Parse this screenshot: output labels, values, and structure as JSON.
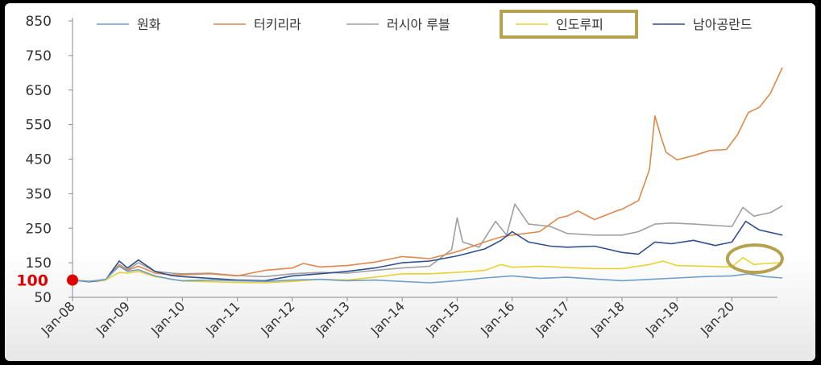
{
  "chart_data": {
    "type": "line",
    "title": "",
    "xlabel": "",
    "ylabel": "",
    "ylim": [
      50,
      850
    ],
    "yticks": [
      850,
      750,
      650,
      550,
      450,
      350,
      250,
      150,
      50
    ],
    "xlim": [
      2008.0,
      2020.92
    ],
    "xticks": [
      {
        "label": "Jan-08",
        "x": 2008
      },
      {
        "label": "Jan-09",
        "x": 2009
      },
      {
        "label": "Jan-10",
        "x": 2010
      },
      {
        "label": "Jan-11",
        "x": 2011
      },
      {
        "label": "Jan-12",
        "x": 2012
      },
      {
        "label": "Jan-13",
        "x": 2013
      },
      {
        "label": "Jan-14",
        "x": 2014
      },
      {
        "label": "Jan-15",
        "x": 2015
      },
      {
        "label": "Jan-16",
        "x": 2016
      },
      {
        "label": "Jan-17",
        "x": 2017
      },
      {
        "label": "Jan-18",
        "x": 2018
      },
      {
        "label": "Jan-19",
        "x": 2019
      },
      {
        "label": "Jan-20",
        "x": 2020
      }
    ],
    "baseline_marker": {
      "label": "100",
      "x": 2008,
      "y": 100,
      "color": "#e00000"
    },
    "legend": {
      "placement": "top",
      "highlighted": "인도루피",
      "highlight_color": "#b5a14e"
    },
    "annotation": {
      "type": "ellipse",
      "x": 2020.3,
      "y": 150,
      "color": "#b5a14e"
    },
    "series": [
      {
        "name": "원화",
        "color": "#6f9fca",
        "points": [
          [
            2008.0,
            100
          ],
          [
            2008.3,
            96
          ],
          [
            2008.6,
            102
          ],
          [
            2008.85,
            140
          ],
          [
            2009.0,
            125
          ],
          [
            2009.2,
            130
          ],
          [
            2009.5,
            112
          ],
          [
            2009.8,
            102
          ],
          [
            2010.0,
            98
          ],
          [
            2010.5,
            100
          ],
          [
            2011.0,
            98
          ],
          [
            2011.5,
            96
          ],
          [
            2012.0,
            100
          ],
          [
            2012.5,
            102
          ],
          [
            2013.0,
            98
          ],
          [
            2013.5,
            100
          ],
          [
            2014.0,
            96
          ],
          [
            2014.5,
            92
          ],
          [
            2015.0,
            98
          ],
          [
            2015.5,
            106
          ],
          [
            2016.0,
            112
          ],
          [
            2016.5,
            105
          ],
          [
            2017.0,
            108
          ],
          [
            2017.5,
            103
          ],
          [
            2018.0,
            98
          ],
          [
            2018.5,
            102
          ],
          [
            2019.0,
            106
          ],
          [
            2019.5,
            110
          ],
          [
            2020.0,
            112
          ],
          [
            2020.3,
            118
          ],
          [
            2020.6,
            110
          ],
          [
            2020.92,
            106
          ]
        ]
      },
      {
        "name": "터키리라",
        "color": "#e0894b",
        "points": [
          [
            2008.0,
            100
          ],
          [
            2008.3,
            95
          ],
          [
            2008.6,
            100
          ],
          [
            2008.85,
            145
          ],
          [
            2009.0,
            128
          ],
          [
            2009.2,
            140
          ],
          [
            2009.5,
            120
          ],
          [
            2009.8,
            115
          ],
          [
            2010.0,
            115
          ],
          [
            2010.5,
            118
          ],
          [
            2011.0,
            112
          ],
          [
            2011.5,
            128
          ],
          [
            2012.0,
            135
          ],
          [
            2012.2,
            148
          ],
          [
            2012.5,
            138
          ],
          [
            2013.0,
            142
          ],
          [
            2013.5,
            152
          ],
          [
            2014.0,
            168
          ],
          [
            2014.5,
            162
          ],
          [
            2015.0,
            182
          ],
          [
            2015.5,
            210
          ],
          [
            2015.8,
            225
          ],
          [
            2016.0,
            230
          ],
          [
            2016.5,
            240
          ],
          [
            2016.85,
            280
          ],
          [
            2017.0,
            285
          ],
          [
            2017.2,
            300
          ],
          [
            2017.5,
            275
          ],
          [
            2017.9,
            300
          ],
          [
            2018.0,
            305
          ],
          [
            2018.3,
            330
          ],
          [
            2018.5,
            420
          ],
          [
            2018.6,
            575
          ],
          [
            2018.7,
            520
          ],
          [
            2018.8,
            470
          ],
          [
            2019.0,
            448
          ],
          [
            2019.3,
            460
          ],
          [
            2019.6,
            475
          ],
          [
            2019.9,
            478
          ],
          [
            2020.1,
            520
          ],
          [
            2020.3,
            585
          ],
          [
            2020.5,
            600
          ],
          [
            2020.7,
            640
          ],
          [
            2020.92,
            715
          ]
        ]
      },
      {
        "name": "러시아 루블",
        "color": "#a0a0a0",
        "points": [
          [
            2008.0,
            100
          ],
          [
            2008.3,
            96
          ],
          [
            2008.6,
            100
          ],
          [
            2008.85,
            145
          ],
          [
            2009.0,
            130
          ],
          [
            2009.2,
            150
          ],
          [
            2009.5,
            125
          ],
          [
            2009.8,
            120
          ],
          [
            2010.0,
            118
          ],
          [
            2010.5,
            120
          ],
          [
            2011.0,
            113
          ],
          [
            2011.5,
            110
          ],
          [
            2012.0,
            118
          ],
          [
            2012.5,
            122
          ],
          [
            2013.0,
            120
          ],
          [
            2013.5,
            128
          ],
          [
            2014.0,
            135
          ],
          [
            2014.5,
            140
          ],
          [
            2014.9,
            188
          ],
          [
            2015.0,
            280
          ],
          [
            2015.1,
            210
          ],
          [
            2015.4,
            195
          ],
          [
            2015.7,
            270
          ],
          [
            2015.9,
            230
          ],
          [
            2016.05,
            320
          ],
          [
            2016.3,
            262
          ],
          [
            2016.7,
            255
          ],
          [
            2017.0,
            235
          ],
          [
            2017.5,
            230
          ],
          [
            2018.0,
            230
          ],
          [
            2018.3,
            240
          ],
          [
            2018.6,
            262
          ],
          [
            2018.9,
            265
          ],
          [
            2019.3,
            262
          ],
          [
            2019.7,
            258
          ],
          [
            2020.0,
            255
          ],
          [
            2020.2,
            310
          ],
          [
            2020.4,
            285
          ],
          [
            2020.7,
            295
          ],
          [
            2020.92,
            315
          ]
        ]
      },
      {
        "name": "인도루피",
        "color": "#e8d334",
        "points": [
          [
            2008.0,
            100
          ],
          [
            2008.3,
            97
          ],
          [
            2008.6,
            100
          ],
          [
            2008.85,
            122
          ],
          [
            2009.0,
            120
          ],
          [
            2009.2,
            125
          ],
          [
            2009.5,
            110
          ],
          [
            2009.8,
            103
          ],
          [
            2010.0,
            97
          ],
          [
            2010.5,
            95
          ],
          [
            2011.0,
            93
          ],
          [
            2011.5,
            92
          ],
          [
            2012.0,
            96
          ],
          [
            2012.5,
            102
          ],
          [
            2013.0,
            100
          ],
          [
            2013.5,
            108
          ],
          [
            2014.0,
            118
          ],
          [
            2014.5,
            118
          ],
          [
            2015.0,
            122
          ],
          [
            2015.5,
            128
          ],
          [
            2015.8,
            145
          ],
          [
            2016.0,
            137
          ],
          [
            2016.5,
            140
          ],
          [
            2017.0,
            136
          ],
          [
            2017.5,
            133
          ],
          [
            2018.0,
            133
          ],
          [
            2018.5,
            145
          ],
          [
            2018.75,
            155
          ],
          [
            2019.0,
            142
          ],
          [
            2019.5,
            140
          ],
          [
            2020.0,
            138
          ],
          [
            2020.2,
            165
          ],
          [
            2020.4,
            145
          ],
          [
            2020.6,
            148
          ],
          [
            2020.92,
            150
          ]
        ]
      },
      {
        "name": "남아공란드",
        "color": "#2f4f8f",
        "points": [
          [
            2008.0,
            100
          ],
          [
            2008.3,
            95
          ],
          [
            2008.6,
            100
          ],
          [
            2008.85,
            155
          ],
          [
            2009.0,
            135
          ],
          [
            2009.2,
            158
          ],
          [
            2009.5,
            125
          ],
          [
            2009.8,
            113
          ],
          [
            2010.0,
            110
          ],
          [
            2010.5,
            105
          ],
          [
            2011.0,
            100
          ],
          [
            2011.5,
            98
          ],
          [
            2012.0,
            112
          ],
          [
            2012.5,
            118
          ],
          [
            2013.0,
            125
          ],
          [
            2013.5,
            135
          ],
          [
            2014.0,
            150
          ],
          [
            2014.5,
            155
          ],
          [
            2015.0,
            170
          ],
          [
            2015.5,
            190
          ],
          [
            2015.8,
            215
          ],
          [
            2016.0,
            240
          ],
          [
            2016.3,
            210
          ],
          [
            2016.7,
            198
          ],
          [
            2017.0,
            195
          ],
          [
            2017.5,
            198
          ],
          [
            2018.0,
            180
          ],
          [
            2018.3,
            175
          ],
          [
            2018.6,
            210
          ],
          [
            2018.9,
            205
          ],
          [
            2019.3,
            215
          ],
          [
            2019.7,
            200
          ],
          [
            2020.0,
            210
          ],
          [
            2020.25,
            270
          ],
          [
            2020.5,
            245
          ],
          [
            2020.92,
            230
          ]
        ]
      }
    ]
  }
}
